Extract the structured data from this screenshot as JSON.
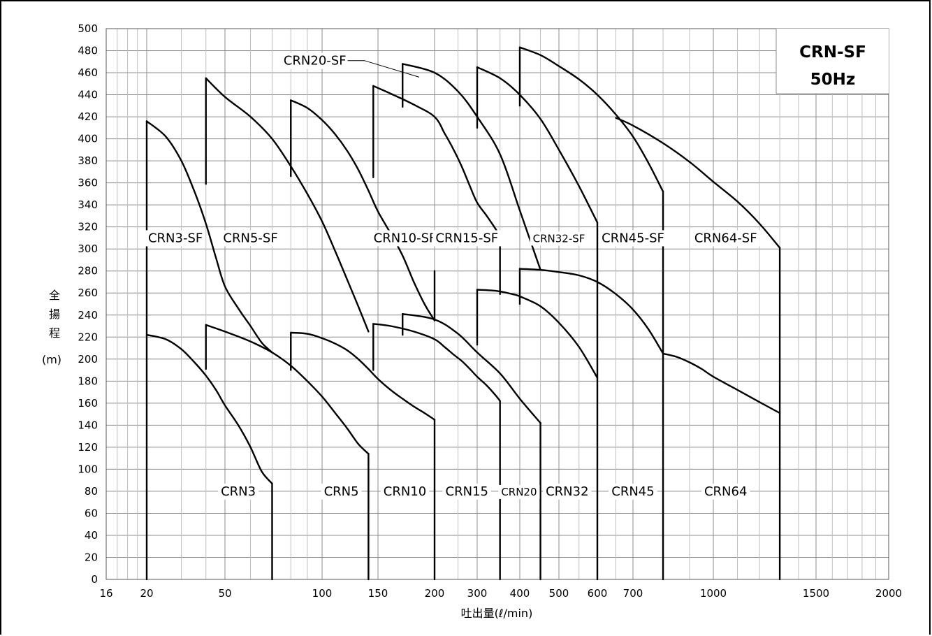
{
  "chart_data": {
    "type": "line",
    "title": "CRN-SF",
    "subtitle": "50Hz",
    "xlabel": "吐出量(ℓ/min)",
    "ylabel_chars": [
      "全",
      "揚",
      "程"
    ],
    "ylabel_unit": "(m)",
    "ylim": [
      0,
      500
    ],
    "y_ticks": [
      0,
      20,
      40,
      60,
      80,
      100,
      120,
      140,
      160,
      180,
      200,
      220,
      240,
      260,
      280,
      300,
      320,
      340,
      360,
      380,
      400,
      420,
      440,
      460,
      480,
      500
    ],
    "x_ticks": [
      "16",
      "20",
      "50",
      "100",
      "150",
      "200",
      "300",
      "400",
      "500",
      "600",
      "700",
      "1000",
      "1500",
      "2000"
    ],
    "grid": true,
    "series": [
      {
        "name": "CRN3",
        "x": [
          20,
          25,
          30,
          35,
          40,
          45,
          50,
          55,
          60,
          65,
          70
        ],
        "y": [
          222,
          218,
          209,
          197,
          185,
          172,
          158,
          140,
          120,
          98,
          87
        ]
      },
      {
        "name": "CRN5",
        "x": [
          40,
          50,
          60,
          70,
          80,
          90,
          100,
          110,
          120,
          130,
          140
        ],
        "y": [
          231,
          225,
          216,
          206,
          194,
          180,
          166,
          151,
          137,
          123,
          114
        ]
      },
      {
        "name": "CRN10",
        "x": [
          80,
          90,
          100,
          110,
          120,
          130,
          140,
          150,
          160,
          170,
          180,
          190,
          200
        ],
        "y": [
          224,
          223,
          219,
          214,
          208,
          200,
          191,
          182,
          172,
          164,
          157,
          151,
          145
        ]
      },
      {
        "name": "CRN15",
        "x": [
          145,
          160,
          180,
          200,
          220,
          240,
          260,
          280,
          300,
          320,
          340,
          350
        ],
        "y": [
          232,
          230,
          225,
          218,
          211,
          204,
          198,
          191,
          184,
          176,
          167,
          162
        ]
      },
      {
        "name": "CRN20",
        "x": [
          170,
          200,
          250,
          300,
          350,
          400,
          450
        ],
        "y": [
          241,
          236,
          223,
          206,
          187,
          164,
          142
        ]
      },
      {
        "name": "CRN32",
        "x": [
          300,
          340,
          380,
          400,
          450,
          500,
          550,
          600
        ],
        "y": [
          263,
          262,
          259,
          257,
          248,
          233,
          211,
          183
        ]
      },
      {
        "name": "CRN45",
        "x": [
          400,
          450,
          500,
          550,
          600,
          650,
          700,
          750,
          800
        ],
        "y": [
          282,
          281,
          279,
          276,
          270,
          259,
          245,
          227,
          205
        ]
      },
      {
        "name": "CRN64",
        "x": [
          800,
          850,
          900,
          950,
          1000,
          1100,
          1200,
          1300
        ],
        "y": [
          205,
          202,
          197,
          191,
          184,
          172,
          161,
          151
        ]
      },
      {
        "name": "CRN3-SF",
        "x": [
          20,
          25,
          30,
          35,
          40,
          45,
          50,
          55,
          60,
          65,
          70
        ],
        "y": [
          416,
          402,
          380,
          352,
          323,
          292,
          266,
          246,
          230,
          215,
          206
        ]
      },
      {
        "name": "CRN5-SF",
        "x": [
          40,
          50,
          60,
          70,
          80,
          90,
          100,
          110,
          120,
          130,
          140
        ],
        "y": [
          455,
          438,
          420,
          400,
          375,
          350,
          325,
          298,
          272,
          248,
          225
        ]
      },
      {
        "name": "CRN10-SF",
        "x": [
          80,
          90,
          100,
          110,
          120,
          130,
          140,
          150,
          160,
          170,
          180,
          190,
          200
        ],
        "y": [
          435,
          428,
          417,
          404,
          389,
          372,
          353,
          334,
          314,
          294,
          270,
          250,
          235
        ]
      },
      {
        "name": "CRN15-SF",
        "x": [
          145,
          160,
          180,
          200,
          220,
          240,
          260,
          280,
          300,
          320,
          340,
          350
        ],
        "y": [
          448,
          441,
          431,
          420,
          405,
          390,
          374,
          357,
          342,
          330,
          318,
          311
        ]
      },
      {
        "name": "CRN20-SF",
        "x": [
          170,
          200,
          250,
          300,
          350,
          400,
          450
        ],
        "y": [
          468,
          460,
          443,
          420,
          386,
          335,
          281
        ]
      },
      {
        "name": "CRN32-SF",
        "x": [
          300,
          350,
          400,
          450,
          500,
          550,
          600
        ],
        "y": [
          465,
          455,
          440,
          418,
          390,
          357,
          324
        ]
      },
      {
        "name": "CRN45-SF",
        "x": [
          400,
          450,
          500,
          550,
          600,
          650,
          700,
          750,
          800
        ],
        "y": [
          483,
          476,
          466,
          454,
          440,
          422,
          402,
          378,
          352
        ]
      },
      {
        "name": "CRN64-SF",
        "x": [
          650,
          700,
          800,
          900,
          1000,
          1100,
          1200,
          1300
        ],
        "y": [
          419,
          412,
          396,
          379,
          361,
          343,
          323,
          301
        ]
      }
    ],
    "verticals": [
      {
        "x": 20,
        "y1": 0,
        "y2": 416
      },
      {
        "x": 40,
        "y1": 191,
        "y2": 231
      },
      {
        "x": 40,
        "y1": 359,
        "y2": 455
      },
      {
        "x": 70,
        "y1": 0,
        "y2": 87
      },
      {
        "x": 80,
        "y1": 190,
        "y2": 224
      },
      {
        "x": 80,
        "y1": 366,
        "y2": 435
      },
      {
        "x": 140,
        "y1": 0,
        "y2": 114
      },
      {
        "x": 145,
        "y1": 190,
        "y2": 232
      },
      {
        "x": 145,
        "y1": 365,
        "y2": 448
      },
      {
        "x": 170,
        "y1": 222,
        "y2": 241
      },
      {
        "x": 170,
        "y1": 429,
        "y2": 468
      },
      {
        "x": 200,
        "y1": 0,
        "y2": 145
      },
      {
        "x": 200,
        "y1": 235,
        "y2": 280
      },
      {
        "x": 300,
        "y1": 213,
        "y2": 263
      },
      {
        "x": 300,
        "y1": 410,
        "y2": 465
      },
      {
        "x": 350,
        "y1": 0,
        "y2": 162
      },
      {
        "x": 350,
        "y1": 259,
        "y2": 311
      },
      {
        "x": 400,
        "y1": 250,
        "y2": 282
      },
      {
        "x": 400,
        "y1": 430,
        "y2": 483
      },
      {
        "x": 450,
        "y1": 0,
        "y2": 142
      },
      {
        "x": 600,
        "y1": 0,
        "y2": 324
      },
      {
        "x": 800,
        "y1": 0,
        "y2": 352
      },
      {
        "x": 1300,
        "y1": 0,
        "y2": 301
      }
    ],
    "labels": [
      {
        "text": "CRN3",
        "x": 55,
        "y": 80
      },
      {
        "text": "CRN5",
        "x": 115,
        "y": 80
      },
      {
        "text": "CRN10",
        "x": 172,
        "y": 80
      },
      {
        "text": "CRN15",
        "x": 272,
        "y": 80
      },
      {
        "text": "CRN20",
        "x": 398,
        "y": 80
      },
      {
        "text": "CRN32",
        "x": 520,
        "y": 80
      },
      {
        "text": "CRN45",
        "x": 700,
        "y": 80
      },
      {
        "text": "CRN64",
        "x": 1050,
        "y": 80
      },
      {
        "text": "CRN3-SF",
        "x": 28,
        "y": 310
      },
      {
        "text": "CRN5-SF",
        "x": 60,
        "y": 310
      },
      {
        "text": "CRN10-SF",
        "x": 172,
        "y": 310
      },
      {
        "text": "CRN15-SF",
        "x": 272,
        "y": 310
      },
      {
        "text": "CRN32-SF",
        "x": 500,
        "y": 310
      },
      {
        "text": "CRN45-SF",
        "x": 700,
        "y": 310
      },
      {
        "text": "CRN64-SF",
        "x": 1050,
        "y": 310
      }
    ],
    "callout": {
      "text": "CRN20-SF"
    }
  }
}
